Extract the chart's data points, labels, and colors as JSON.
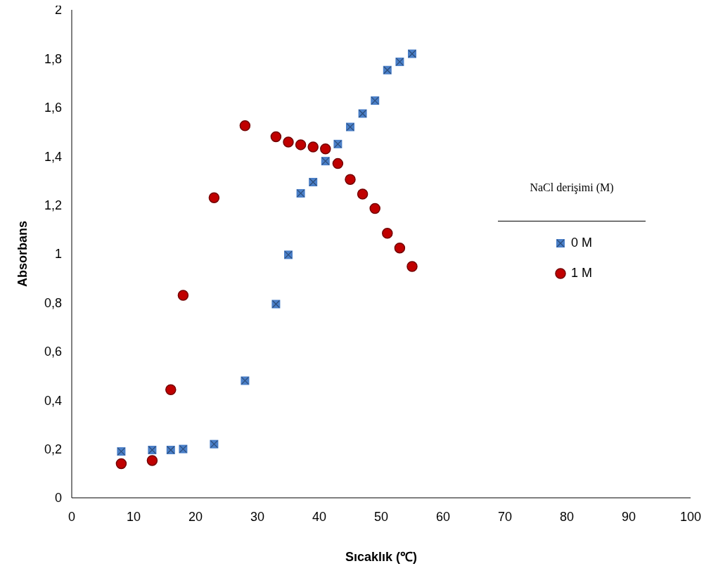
{
  "chart_data": {
    "type": "scatter",
    "xlabel": "Sıcaklık (℃)",
    "ylabel": "Absorbans",
    "legend_title": "NaCl derişimi (M)",
    "legend": "right",
    "xlim": [
      0,
      100
    ],
    "xticks": [
      0,
      10,
      20,
      30,
      40,
      50,
      60,
      70,
      80,
      90,
      100
    ],
    "ylim": [
      0,
      2
    ],
    "yticks": [
      0,
      {
        "value": 0.2,
        "label": "0,2"
      },
      {
        "value": 0.4,
        "label": "0,4"
      },
      {
        "value": 0.6,
        "label": "0,6"
      },
      {
        "value": 0.8,
        "label": "0,8"
      },
      1,
      {
        "value": 1.2,
        "label": "1,2"
      },
      {
        "value": 1.4,
        "label": "1,4"
      },
      {
        "value": 1.6,
        "label": "1,6"
      },
      {
        "value": 1.8,
        "label": "1,8"
      },
      2
    ],
    "x": [
      8,
      13,
      16,
      18,
      23,
      28,
      33,
      35,
      37,
      39,
      41,
      43,
      45,
      47,
      49,
      51,
      53,
      55
    ],
    "series": [
      {
        "name": "0 M",
        "color": "#4a7fc8",
        "marker": "square",
        "values": [
          0.19,
          0.196,
          0.196,
          0.2,
          0.22,
          0.48,
          0.794,
          0.996,
          1.248,
          1.294,
          1.38,
          1.45,
          1.52,
          1.575,
          1.628,
          1.753,
          1.787,
          1.82
        ]
      },
      {
        "name": "1 M",
        "color": "#c00000",
        "marker": "circle",
        "values": [
          0.14,
          0.153,
          0.443,
          0.83,
          1.23,
          1.525,
          1.48,
          1.458,
          1.447,
          1.438,
          1.43,
          1.37,
          1.305,
          1.245,
          1.186,
          1.084,
          1.024,
          0.948
        ]
      }
    ]
  }
}
